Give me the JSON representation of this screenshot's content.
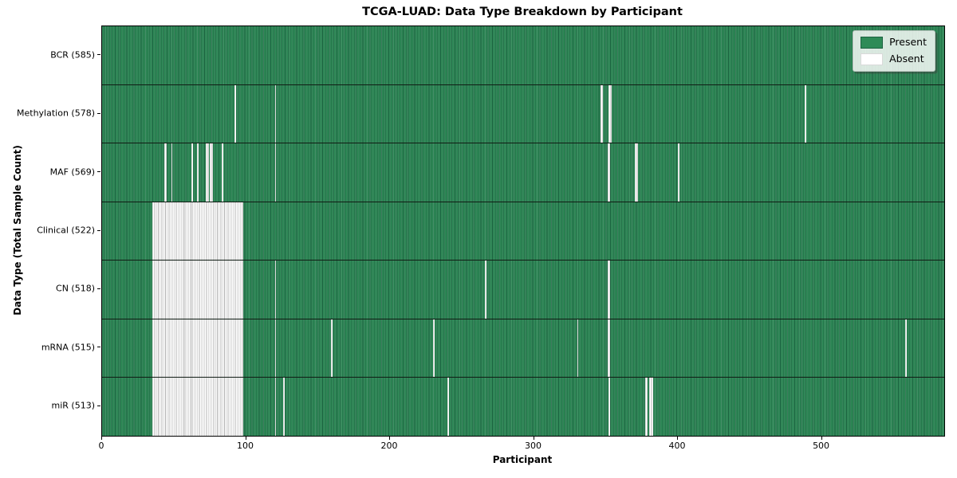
{
  "chart_data": {
    "type": "heatmap",
    "title": "TCGA-LUAD: Data Type Breakdown by Participant",
    "xlabel": "Participant",
    "ylabel": "Data Type (Total Sample Count)",
    "n_participants": 585,
    "x_ticks": [
      0,
      100,
      200,
      300,
      400,
      500
    ],
    "xlim": [
      0,
      585
    ],
    "grid": false,
    "legend_position": "upper right",
    "colors": {
      "present": "#2e8b57",
      "present_edge": "#1d6241",
      "absent": "#ffffff",
      "absent_edge": "#b3b3b3",
      "separator": "#101c14"
    },
    "legend": [
      {
        "label": "Present",
        "color": "#2e8b57",
        "edge": "#1d6241"
      },
      {
        "label": "Absent",
        "color": "#ffffff",
        "edge": "#d9d9d9"
      }
    ],
    "rows": [
      {
        "label": "BCR (585)",
        "data_type": "BCR",
        "present_count": 585,
        "absent_ranges": []
      },
      {
        "label": "Methylation (578)",
        "data_type": "Methylation",
        "present_count": 578,
        "absent_ranges": [
          [
            92,
            92
          ],
          [
            120,
            120
          ],
          [
            346,
            347
          ],
          [
            352,
            353
          ],
          [
            488,
            488
          ]
        ]
      },
      {
        "label": "MAF (569)",
        "data_type": "MAF",
        "present_count": 569,
        "absent_ranges": [
          [
            43,
            44
          ],
          [
            48,
            48
          ],
          [
            62,
            62
          ],
          [
            66,
            66
          ],
          [
            72,
            73
          ],
          [
            75,
            76
          ],
          [
            83,
            83
          ],
          [
            120,
            120
          ],
          [
            351,
            352
          ],
          [
            370,
            371
          ],
          [
            400,
            400
          ]
        ]
      },
      {
        "label": "Clinical (522)",
        "data_type": "Clinical",
        "present_count": 522,
        "absent_ranges": [
          [
            35,
            97
          ]
        ]
      },
      {
        "label": "CN (518)",
        "data_type": "CN",
        "present_count": 518,
        "absent_ranges": [
          [
            35,
            97
          ],
          [
            120,
            120
          ],
          [
            266,
            266
          ],
          [
            351,
            352
          ]
        ]
      },
      {
        "label": "mRNA (515)",
        "data_type": "mRNA",
        "present_count": 515,
        "absent_ranges": [
          [
            35,
            97
          ],
          [
            120,
            120
          ],
          [
            159,
            159
          ],
          [
            230,
            230
          ],
          [
            330,
            330
          ],
          [
            351,
            352
          ],
          [
            558,
            558
          ]
        ]
      },
      {
        "label": "miR (513)",
        "data_type": "miR",
        "present_count": 513,
        "absent_ranges": [
          [
            35,
            97
          ],
          [
            120,
            120
          ],
          [
            126,
            126
          ],
          [
            240,
            240
          ],
          [
            352,
            352
          ],
          [
            377,
            378
          ],
          [
            380,
            382
          ]
        ]
      }
    ]
  }
}
